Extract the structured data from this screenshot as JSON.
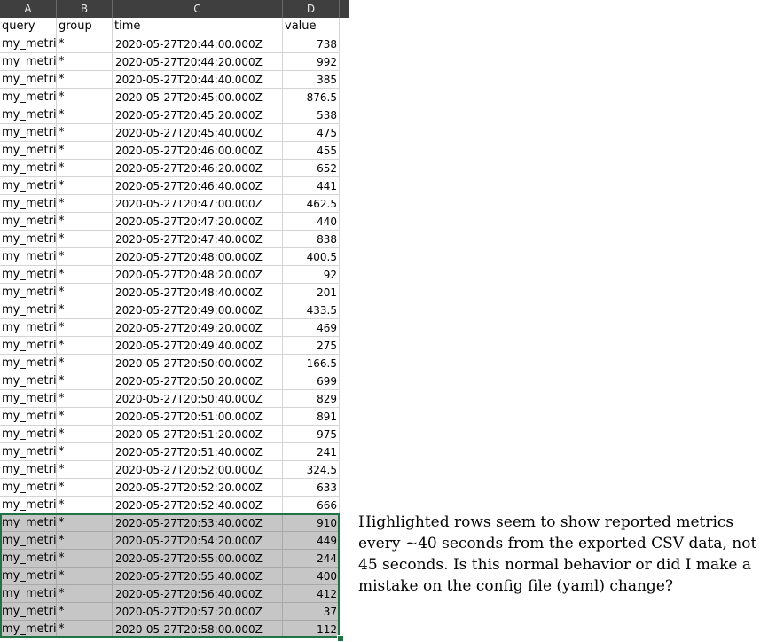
{
  "columns": [
    "A",
    "B",
    "C",
    "D"
  ],
  "header": {
    "query": "query",
    "group": "group",
    "time": "time",
    "value": "value"
  },
  "rows": [
    {
      "query": "my_metri",
      "group": "*",
      "time": "2020-05-27T20:44:00.000Z",
      "value": "738"
    },
    {
      "query": "my_metri",
      "group": "*",
      "time": "2020-05-27T20:44:20.000Z",
      "value": "992"
    },
    {
      "query": "my_metri",
      "group": "*",
      "time": "2020-05-27T20:44:40.000Z",
      "value": "385"
    },
    {
      "query": "my_metri",
      "group": "*",
      "time": "2020-05-27T20:45:00.000Z",
      "value": "876.5"
    },
    {
      "query": "my_metri",
      "group": "*",
      "time": "2020-05-27T20:45:20.000Z",
      "value": "538"
    },
    {
      "query": "my_metri",
      "group": "*",
      "time": "2020-05-27T20:45:40.000Z",
      "value": "475"
    },
    {
      "query": "my_metri",
      "group": "*",
      "time": "2020-05-27T20:46:00.000Z",
      "value": "455"
    },
    {
      "query": "my_metri",
      "group": "*",
      "time": "2020-05-27T20:46:20.000Z",
      "value": "652"
    },
    {
      "query": "my_metri",
      "group": "*",
      "time": "2020-05-27T20:46:40.000Z",
      "value": "441"
    },
    {
      "query": "my_metri",
      "group": "*",
      "time": "2020-05-27T20:47:00.000Z",
      "value": "462.5"
    },
    {
      "query": "my_metri",
      "group": "*",
      "time": "2020-05-27T20:47:20.000Z",
      "value": "440"
    },
    {
      "query": "my_metri",
      "group": "*",
      "time": "2020-05-27T20:47:40.000Z",
      "value": "838"
    },
    {
      "query": "my_metri",
      "group": "*",
      "time": "2020-05-27T20:48:00.000Z",
      "value": "400.5"
    },
    {
      "query": "my_metri",
      "group": "*",
      "time": "2020-05-27T20:48:20.000Z",
      "value": "92"
    },
    {
      "query": "my_metri",
      "group": "*",
      "time": "2020-05-27T20:48:40.000Z",
      "value": "201"
    },
    {
      "query": "my_metri",
      "group": "*",
      "time": "2020-05-27T20:49:00.000Z",
      "value": "433.5"
    },
    {
      "query": "my_metri",
      "group": "*",
      "time": "2020-05-27T20:49:20.000Z",
      "value": "469"
    },
    {
      "query": "my_metri",
      "group": "*",
      "time": "2020-05-27T20:49:40.000Z",
      "value": "275"
    },
    {
      "query": "my_metri",
      "group": "*",
      "time": "2020-05-27T20:50:00.000Z",
      "value": "166.5"
    },
    {
      "query": "my_metri",
      "group": "*",
      "time": "2020-05-27T20:50:20.000Z",
      "value": "699"
    },
    {
      "query": "my_metri",
      "group": "*",
      "time": "2020-05-27T20:50:40.000Z",
      "value": "829"
    },
    {
      "query": "my_metri",
      "group": "*",
      "time": "2020-05-27T20:51:00.000Z",
      "value": "891"
    },
    {
      "query": "my_metri",
      "group": "*",
      "time": "2020-05-27T20:51:20.000Z",
      "value": "975"
    },
    {
      "query": "my_metri",
      "group": "*",
      "time": "2020-05-27T20:51:40.000Z",
      "value": "241"
    },
    {
      "query": "my_metri",
      "group": "*",
      "time": "2020-05-27T20:52:00.000Z",
      "value": "324.5"
    },
    {
      "query": "my_metri",
      "group": "*",
      "time": "2020-05-27T20:52:20.000Z",
      "value": "633"
    },
    {
      "query": "my_metri",
      "group": "*",
      "time": "2020-05-27T20:52:40.000Z",
      "value": "666"
    },
    {
      "query": "my_metri",
      "group": "*",
      "time": "2020-05-27T20:53:40.000Z",
      "value": "910",
      "highlighted": true
    },
    {
      "query": "my_metri",
      "group": "*",
      "time": "2020-05-27T20:54:20.000Z",
      "value": "449",
      "highlighted": true
    },
    {
      "query": "my_metri",
      "group": "*",
      "time": "2020-05-27T20:55:00.000Z",
      "value": "244",
      "highlighted": true
    },
    {
      "query": "my_metri",
      "group": "*",
      "time": "2020-05-27T20:55:40.000Z",
      "value": "400",
      "highlighted": true
    },
    {
      "query": "my_metri",
      "group": "*",
      "time": "2020-05-27T20:56:40.000Z",
      "value": "412",
      "highlighted": true
    },
    {
      "query": "my_metri",
      "group": "*",
      "time": "2020-05-27T20:57:20.000Z",
      "value": "37",
      "highlighted": true
    },
    {
      "query": "my_metri",
      "group": "*",
      "time": "2020-05-27T20:58:00.000Z",
      "value": "112",
      "highlighted": true
    }
  ],
  "annotation": "Highlighted rows seem to show reported metrics every ~40 seconds from the exported CSV data, not 45 seconds. Is this normal behavior or did I make a mistake on the config file (yaml) change?",
  "colors": {
    "header_bg": "#3f3f3f",
    "highlight_bg": "#c6c6c6",
    "selection_border": "#217346"
  }
}
